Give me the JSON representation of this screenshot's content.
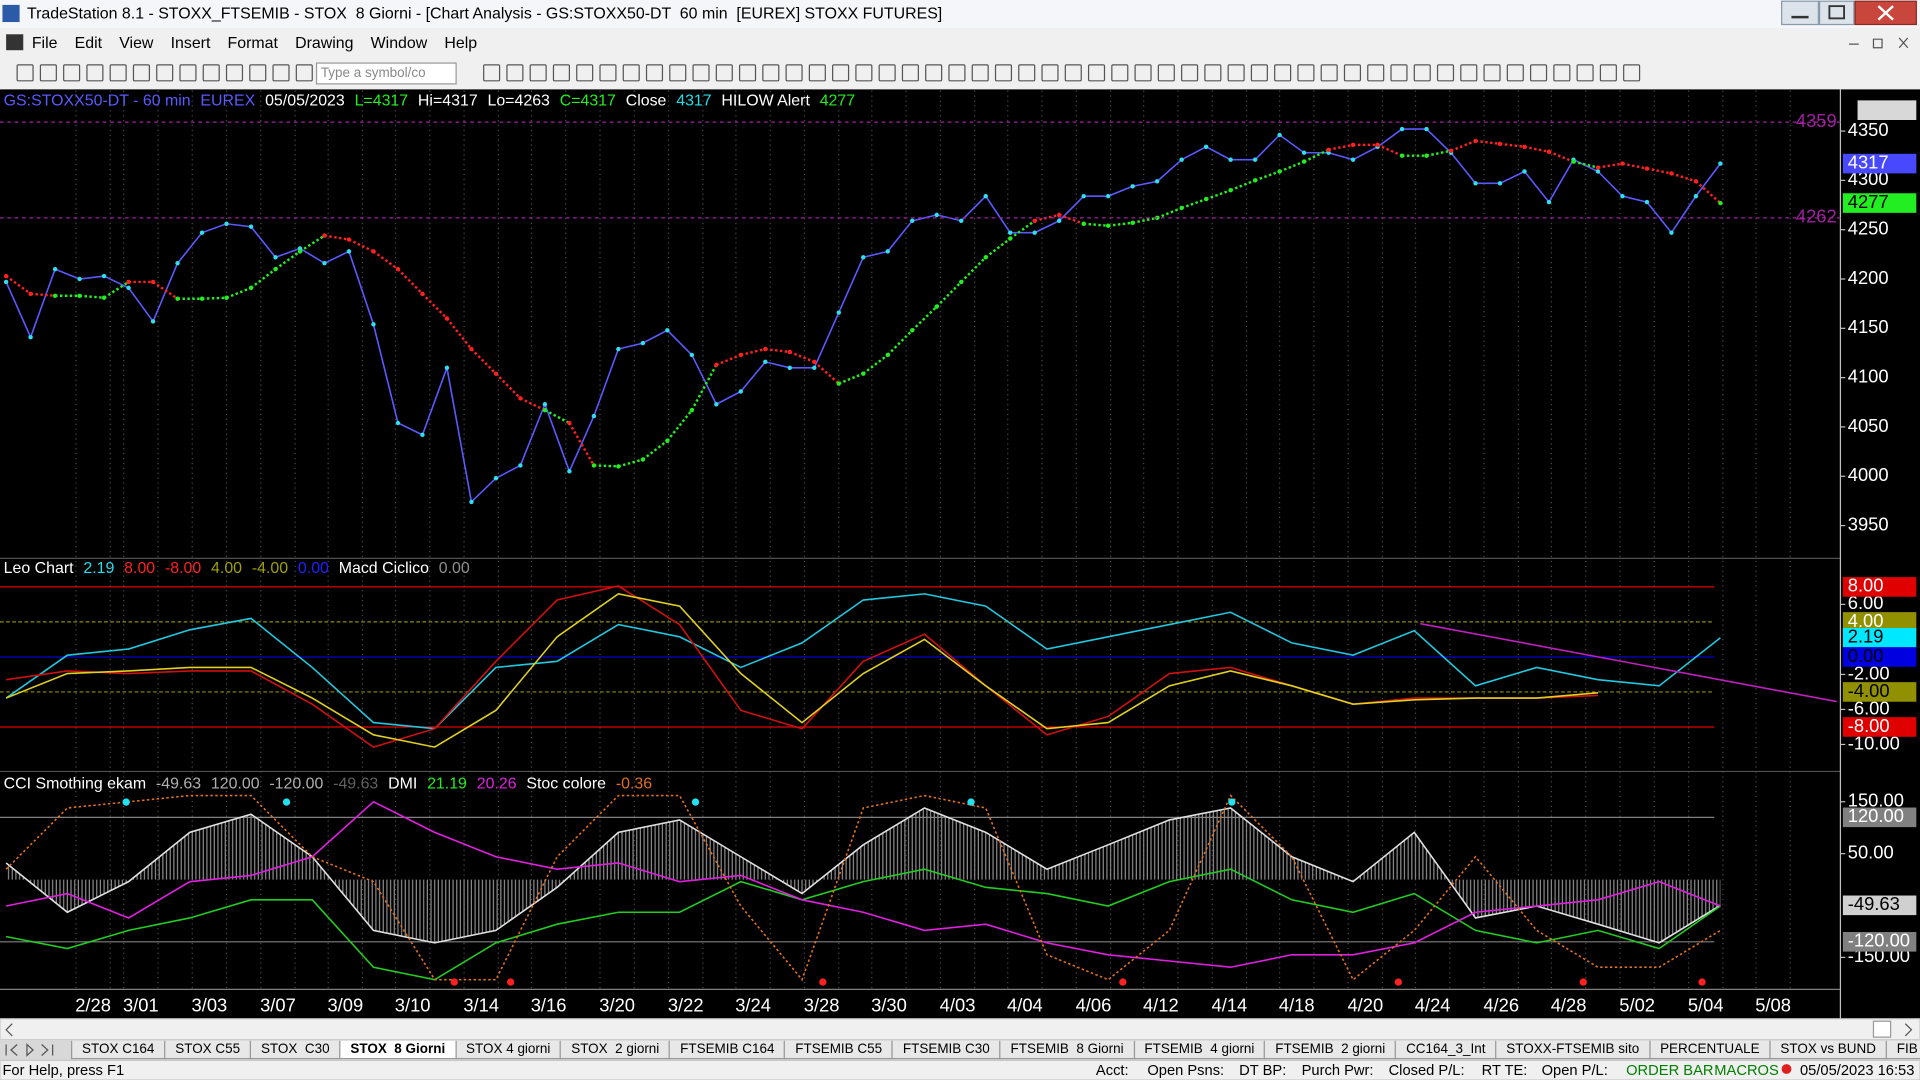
{
  "window": {
    "title": "TradeStation 8.1 - STOXX_FTSEMIB - STOX  8 Giorni - [Chart Analysis - GS:STOXX50-DT  60 min  [EUREX] STOXX FUTURES]"
  },
  "menu": [
    "File",
    "Edit",
    "View",
    "Insert",
    "Format",
    "Drawing",
    "Window",
    "Help"
  ],
  "toolbar": {
    "symbol_placeholder": "Type a symbol/co"
  },
  "x_axis": {
    "categories": [
      "2/28",
      "3/01",
      "3/03",
      "3/07",
      "3/09",
      "3/10",
      "3/14",
      "3/16",
      "3/20",
      "3/22",
      "3/24",
      "3/28",
      "3/30",
      "4/03",
      "4/04",
      "4/06",
      "4/12",
      "4/14",
      "4/18",
      "4/20",
      "4/24",
      "4/26",
      "4/28",
      "5/02",
      "5/04",
      "5/08"
    ]
  },
  "chart_data": [
    {
      "type": "line",
      "header": [
        {
          "text": "GS:STOXX50-DT - 60 min",
          "color": "#5a5aff"
        },
        {
          "text": "EUREX",
          "color": "#5a5aff"
        },
        {
          "text": "05/05/2023",
          "color": "#ffffff"
        },
        {
          "text": "L=4317",
          "color": "#22ee22"
        },
        {
          "text": "Hi=4317",
          "color": "#ffffff"
        },
        {
          "text": "Lo=4263",
          "color": "#ffffff"
        },
        {
          "text": "C=4317",
          "color": "#22ee22"
        },
        {
          "text": "Close",
          "color": "#ffffff"
        },
        {
          "text": "4317",
          "color": "#22ddee"
        },
        {
          "text": "HILOW Alert",
          "color": "#ffffff"
        },
        {
          "text": "4277",
          "color": "#22ee22"
        }
      ],
      "ylim": [
        3918,
        4391
      ],
      "yticks": [
        4350,
        4300,
        4250,
        4200,
        4150,
        4100,
        4050,
        4000,
        3950
      ],
      "markers": [
        {
          "value": 4317,
          "bg": "#4848ff",
          "fg": "#ffffff"
        },
        {
          "value": 4277,
          "bg": "#22ee22",
          "fg": "#000000"
        }
      ],
      "alert_levels": {
        "color": "#a020a0",
        "values": [
          4359,
          4262
        ]
      },
      "series": [
        {
          "color": "#5a5aff",
          "dot_color": "#2ee0f0",
          "values": [
            4197,
            4141,
            4210,
            4200,
            4203,
            4191,
            4157,
            4216,
            4247,
            4256,
            4253,
            4222,
            4231,
            4216,
            4228,
            4154,
            4054,
            4042,
            4110,
            3974,
            3998,
            4011,
            4073,
            4005,
            4061,
            4129,
            4135,
            4148,
            4123,
            4073,
            4086,
            4116,
            4110,
            4110,
            4166,
            4222,
            4228,
            4259,
            4265,
            4259,
            4284,
            4247,
            4247,
            4259,
            4284,
            4284,
            4294,
            4299,
            4321,
            4334,
            4321,
            4321,
            4346,
            4328,
            4328,
            4321,
            4334,
            4352,
            4352,
            4328,
            4297,
            4297,
            4309,
            4278,
            4321,
            4309,
            4284,
            4278,
            4247,
            4284,
            4317
          ]
        },
        {
          "up_color": "#22ee22",
          "down_color": "#ff2020",
          "values": [
            4203,
            4185,
            4183,
            4183,
            4181,
            4197,
            4197,
            4180,
            4180,
            4181,
            4191,
            4210,
            4228,
            4244,
            4240,
            4228,
            4210,
            4185,
            4160,
            4129,
            4104,
            4079,
            4067,
            4054,
            4011,
            4010,
            4017,
            4036,
            4067,
            4113,
            4123,
            4129,
            4126,
            4116,
            4094,
            4104,
            4123,
            4148,
            4172,
            4197,
            4222,
            4241,
            4259,
            4265,
            4256,
            4254,
            4257,
            4262,
            4272,
            4281,
            4290,
            4300,
            4309,
            4319,
            4331,
            4336,
            4336,
            4325,
            4325,
            4330,
            4340,
            4337,
            4334,
            4329,
            4319,
            4313,
            4317,
            4312,
            4307,
            4299,
            4277
          ]
        }
      ]
    },
    {
      "type": "line",
      "header": [
        {
          "text": "Leo Chart",
          "color": "#ffffff"
        },
        {
          "text": "2.19",
          "color": "#22ddee"
        },
        {
          "text": "8.00",
          "color": "#ff2020"
        },
        {
          "text": "-8.00",
          "color": "#ff2020"
        },
        {
          "text": "4.00",
          "color": "#a0a000"
        },
        {
          "text": "-4.00",
          "color": "#a0a000"
        },
        {
          "text": "0.00",
          "color": "#2020ff"
        },
        {
          "text": "Macd Ciclico",
          "color": "#ffffff"
        },
        {
          "text": "0.00",
          "color": "#909090"
        }
      ],
      "ylim": [
        -12.8,
        9.3
      ],
      "yticks": [
        {
          "value": 6,
          "label": "6.00"
        },
        {
          "value": -2,
          "label": "-2.00"
        },
        {
          "value": -6,
          "label": "-6.00"
        },
        {
          "value": -10,
          "label": "-10.00"
        }
      ],
      "markers": [
        {
          "value": 8,
          "label": "8.00",
          "bg": "#e00000",
          "fg": "#ffffff",
          "line": true
        },
        {
          "value": 4,
          "label": "4.00",
          "bg": "#909000",
          "fg": "#ffffff",
          "line": true,
          "dash": true
        },
        {
          "value": 2.19,
          "label": "2.19",
          "bg": "#00e8ff",
          "fg": "#000000",
          "line": false
        },
        {
          "value": 0,
          "label": "0.00",
          "bg": "#0000e0",
          "fg": "#000000",
          "line": true
        },
        {
          "value": -4,
          "label": "-4.00",
          "bg": "#909000",
          "fg": "#000000",
          "line": true,
          "dash": true
        },
        {
          "value": -8,
          "label": "-8.00",
          "bg": "#e00000",
          "fg": "#ffffff",
          "line": true
        }
      ],
      "series": [
        {
          "color": "#22c8e0",
          "values": [
            -4.7,
            0.2,
            0.9,
            3.1,
            4.4,
            -1.2,
            -7.5,
            -8.2,
            -1.2,
            -0.5,
            3.7,
            2.3,
            -1.2,
            1.6,
            6.5,
            7.2,
            5.8,
            0.9,
            2.3,
            3.7,
            5.1,
            1.6,
            0.2,
            3.0,
            -3.3,
            -1.2,
            -2.6,
            -3.3,
            2.19
          ]
        },
        {
          "color": "#d01010",
          "values": [
            -2.6,
            -1.6,
            -1.9,
            -1.6,
            -1.6,
            -5.4,
            -10.3,
            -8.2,
            -0.5,
            6.5,
            8.1,
            3.7,
            -6.1,
            -8.2,
            -0.5,
            2.6,
            -3.3,
            -8.9,
            -6.8,
            -1.9,
            -1.2,
            -3.3,
            -5.4,
            -4.7,
            -4.7,
            -4.7,
            -4.4,
            null,
            null
          ]
        },
        {
          "color": "#e0d020",
          "values": [
            -4.7,
            -1.9,
            -1.6,
            -1.2,
            -1.2,
            -4.7,
            -8.9,
            -10.3,
            -6.1,
            2.3,
            7.2,
            5.8,
            -1.9,
            -7.5,
            -1.9,
            2.0,
            -3.3,
            -8.2,
            -7.5,
            -3.3,
            -1.6,
            -3.3,
            -5.4,
            -4.9,
            -4.7,
            -4.7,
            -4.1,
            null,
            null
          ]
        }
      ],
      "trendline": {
        "color": "#c020c0",
        "x": [
          23.1,
          29.9
        ],
        "values": [
          3.8,
          -5.1
        ]
      }
    },
    {
      "type": "line",
      "header": [
        {
          "text": "CCI Smothing ekam",
          "color": "#ffffff"
        },
        {
          "text": "-49.63",
          "color": "#b0b0b0"
        },
        {
          "text": "120.00",
          "color": "#b0b0b0"
        },
        {
          "text": "-120.00",
          "color": "#b0b0b0"
        },
        {
          "text": "-49.63",
          "color": "#606060"
        },
        {
          "text": "DMI",
          "color": "#ffffff"
        },
        {
          "text": "21.19",
          "color": "#22ee22"
        },
        {
          "text": "20.26",
          "color": "#e020e0"
        },
        {
          "text": "Stoc colore",
          "color": "#ffffff"
        },
        {
          "text": "-0.36",
          "color": "#e07020"
        }
      ],
      "ylim": [
        -207,
        166
      ],
      "yticks": [
        {
          "value": 150,
          "label": "150.00"
        },
        {
          "value": 50,
          "label": "50.00"
        },
        {
          "value": -150,
          "label": "-150.00"
        }
      ],
      "markers": [
        {
          "value": 120,
          "label": "120.00",
          "bg": "#808080",
          "fg": "#ffffff",
          "line": true
        },
        {
          "value": -49.63,
          "label": "-49.63",
          "bg": "#d0d0d0",
          "fg": "#000000",
          "line": false
        },
        {
          "value": -120,
          "label": "-120.00",
          "bg": "#808080",
          "fg": "#ffffff",
          "line": true
        }
      ],
      "series": [
        {
          "color": "#e0e0e0",
          "hatch": true,
          "values": [
            32,
            -63,
            -4,
            91,
            126,
            44,
            -98,
            -122,
            -98,
            -15,
            91,
            115,
            44,
            -27,
            67,
            138,
            91,
            20,
            67,
            115,
            138,
            44,
            -4,
            91,
            -74,
            -51,
            -86,
            -122,
            -49.63
          ]
        },
        {
          "color": "#22cc22",
          "values": [
            -110,
            -133,
            -98,
            -74,
            -39,
            -39,
            -169,
            -193,
            -122,
            -86,
            -63,
            -63,
            -4,
            -39,
            -4,
            20,
            -15,
            -27,
            -51,
            -4,
            20,
            -39,
            -63,
            -27,
            -98,
            -122,
            -98,
            -133,
            -51
          ]
        },
        {
          "color": "#e020e0",
          "values": [
            -51,
            -27,
            -74,
            -4,
            8,
            44,
            150,
            91,
            44,
            20,
            32,
            -4,
            8,
            -39,
            -63,
            -98,
            -86,
            -122,
            -145,
            -157,
            -169,
            -145,
            -145,
            -122,
            -63,
            -51,
            -39,
            -4,
            -51
          ]
        },
        {
          "color": "#e07020",
          "dash": true,
          "values": [
            20,
            138,
            150,
            162,
            162,
            44,
            -4,
            -193,
            -193,
            44,
            162,
            162,
            -51,
            -193,
            138,
            162,
            138,
            -145,
            -193,
            -98,
            162,
            44,
            -193,
            -98,
            44,
            -98,
            -169,
            -169,
            -98
          ]
        }
      ],
      "signals": {
        "high_color": "#22e0f0",
        "low_color": "#ff2020",
        "high_x": [
          1.96,
          4.58,
          11.26,
          15.76,
          20.02
        ],
        "low_x": [
          7.32,
          8.24,
          13.34,
          18.24,
          22.74,
          25.76,
          27.7
        ]
      }
    }
  ],
  "tabs": {
    "active": 3,
    "items": [
      "STOX C164",
      "STOX C55",
      "STOX  C30",
      "STOX  8 Giorni",
      "STOX 4 giorni",
      "STOX  2 giorni",
      "FTSEMIB C164",
      "FTSEMIB C55",
      "FTSEMIB C30",
      "FTSEMIB  8 Giorni",
      "FTSEMIB  4 giorni",
      "FTSEMIB  2 giorni",
      "CC164_3_Int",
      "STOXX-FTSEMIB sito",
      "PERCENTUALE",
      "STOX vs BUND",
      "FIB vs BUND"
    ]
  },
  "status": [
    {
      "text": "For Help, press F1",
      "color": "#000000"
    },
    {
      "text": "Acct:",
      "color": "#000000"
    },
    {
      "text": "Open Psns:",
      "color": "#000000"
    },
    {
      "text": "DT BP:",
      "color": "#000000"
    },
    {
      "text": "Purch Pwr:",
      "color": "#000000"
    },
    {
      "text": "Closed P/L:",
      "color": "#000000"
    },
    {
      "text": "RT TE:",
      "color": "#000000"
    },
    {
      "text": "Open P/L:",
      "color": "#000000"
    },
    {
      "text": "ORDER BAR",
      "color": "#008000"
    },
    {
      "text": "MACROS",
      "color": "#008000"
    },
    {
      "text": "05/05/2023 16:53",
      "color": "#000000"
    }
  ]
}
